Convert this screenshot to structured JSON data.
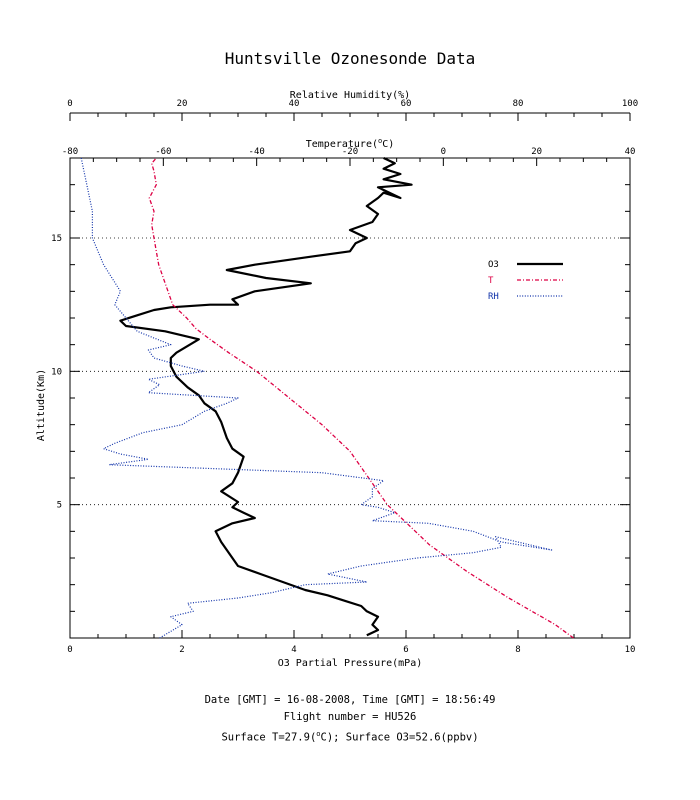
{
  "chart_data": {
    "type": "line",
    "title": "Huntsville Ozonesonde Data",
    "ylabel": "Altitude(Km)",
    "ylim": [
      0,
      18
    ],
    "yticks": [
      5,
      10,
      15
    ],
    "grid": "dotted horizontal lines at 5, 10, 15 km",
    "legend_position": "right",
    "axes": {
      "ozone": {
        "label": "O3 Partial Pressure(mPa)",
        "position": "bottom",
        "range": [
          0,
          10
        ],
        "ticks": [
          0,
          2,
          4,
          6,
          8,
          10
        ]
      },
      "temperature": {
        "label_main": "Temperature(",
        "label_sup": "o",
        "label_unit": "C)",
        "position": "top-inner",
        "range": [
          -80,
          40
        ],
        "ticks": [
          -80,
          -60,
          -40,
          -20,
          0,
          20,
          40
        ]
      },
      "humidity": {
        "label": "Relative Humidity(%)",
        "position": "top-outer",
        "range": [
          0,
          100
        ],
        "ticks": [
          0,
          20,
          40,
          60,
          80,
          100
        ]
      }
    },
    "series": [
      {
        "name": "O3",
        "axis": "ozone",
        "color": "#000000",
        "style": "solid",
        "x": [
          5.3,
          5.5,
          5.4,
          5.5,
          5.3,
          5.2,
          4.9,
          4.6,
          4.2,
          3.8,
          3.4,
          3.0,
          2.9,
          2.8,
          2.7,
          2.6,
          2.9,
          3.3,
          3.1,
          2.9,
          3.0,
          2.7,
          2.9,
          3.0,
          3.1,
          2.9,
          2.8,
          2.7,
          2.6,
          2.4,
          2.3,
          2.1,
          1.9,
          1.8,
          1.8,
          1.9,
          2.3,
          1.7,
          1.0,
          0.9,
          1.2,
          1.5,
          1.8,
          2.5,
          3.0,
          2.9,
          3.3,
          4.3,
          3.5,
          2.8,
          3.3,
          4.3,
          5.0,
          5.1,
          5.3,
          5.0,
          5.4,
          5.5,
          5.3,
          5.5,
          5.6,
          5.9,
          5.5,
          6.1,
          5.6,
          5.9,
          5.6,
          5.8,
          5.6
        ],
        "y": [
          0.1,
          0.3,
          0.5,
          0.8,
          1.0,
          1.2,
          1.4,
          1.6,
          1.8,
          2.1,
          2.4,
          2.7,
          3.0,
          3.3,
          3.6,
          4.0,
          4.3,
          4.5,
          4.7,
          4.9,
          5.1,
          5.5,
          5.8,
          6.2,
          6.8,
          7.1,
          7.5,
          8.1,
          8.5,
          8.8,
          9.1,
          9.4,
          9.8,
          10.2,
          10.5,
          10.7,
          11.2,
          11.5,
          11.7,
          11.9,
          12.1,
          12.3,
          12.4,
          12.5,
          12.5,
          12.7,
          13.0,
          13.3,
          13.5,
          13.8,
          14.0,
          14.3,
          14.5,
          14.8,
          15.0,
          15.3,
          15.6,
          15.9,
          16.2,
          16.5,
          16.7,
          16.5,
          16.9,
          17.0,
          17.2,
          17.4,
          17.6,
          17.8,
          18.0
        ]
      },
      {
        "name": "T",
        "axis": "temperature",
        "color": "#dd0044",
        "style": "dash-dot",
        "x": [
          27.9,
          24,
          19,
          14,
          9.5,
          5,
          1,
          -3,
          -6,
          -9,
          -12,
          -16,
          -20,
          -26,
          -33,
          -40,
          -46,
          -50,
          -53,
          -55,
          -58,
          -59,
          -60,
          -61,
          -61.5,
          -62,
          -62.5,
          -62,
          -63,
          -61.5,
          -62,
          -62.5,
          -61.5
        ],
        "y": [
          0,
          0.5,
          1.0,
          1.5,
          2.0,
          2.5,
          3.0,
          3.5,
          4.0,
          4.5,
          5.0,
          6.0,
          7.0,
          8.0,
          9.0,
          10.0,
          10.7,
          11.2,
          11.6,
          12.0,
          12.5,
          13.0,
          13.5,
          14.0,
          14.5,
          15.0,
          15.5,
          16.0,
          16.5,
          17.0,
          17.5,
          17.8,
          18.0
        ]
      },
      {
        "name": "RH",
        "axis": "humidity",
        "color": "#1133aa",
        "style": "dotted",
        "x": [
          16,
          20,
          18,
          22,
          21,
          30,
          36,
          42,
          53,
          46,
          52,
          62,
          72,
          77,
          76,
          82,
          86,
          77,
          72,
          64,
          54,
          58,
          55,
          52,
          54,
          54,
          56,
          45,
          7,
          14,
          9,
          6,
          8,
          13,
          20,
          24,
          28,
          30,
          14,
          16,
          14,
          24,
          20,
          15,
          14,
          18,
          12,
          10,
          8,
          9,
          6,
          4,
          4,
          3,
          2
        ],
        "y": [
          0,
          0.5,
          0.8,
          1.0,
          1.3,
          1.5,
          1.7,
          2.0,
          2.1,
          2.4,
          2.7,
          3.0,
          3.2,
          3.4,
          3.8,
          3.5,
          3.3,
          3.6,
          4.0,
          4.3,
          4.4,
          4.7,
          4.9,
          5.0,
          5.3,
          5.6,
          5.9,
          6.2,
          6.5,
          6.7,
          6.9,
          7.1,
          7.3,
          7.7,
          8.0,
          8.5,
          8.8,
          9.0,
          9.2,
          9.5,
          9.7,
          10.0,
          10.2,
          10.5,
          10.8,
          11.0,
          11.5,
          12.0,
          12.5,
          13.0,
          14.0,
          15.0,
          16.0,
          17.0,
          18.0
        ]
      }
    ]
  },
  "footer": {
    "line1": "Date [GMT] = 16-08-2008,  Time [GMT] = 18:56:49",
    "line2": "Flight number = HU526",
    "line3_a": "Surface T=27.9(",
    "line3_sup": "o",
    "line3_b": "C); Surface O3=52.6(ppbv)"
  },
  "colors": {
    "ozone": "#000000",
    "temperature": "#dd0044",
    "humidity": "#1133aa"
  }
}
